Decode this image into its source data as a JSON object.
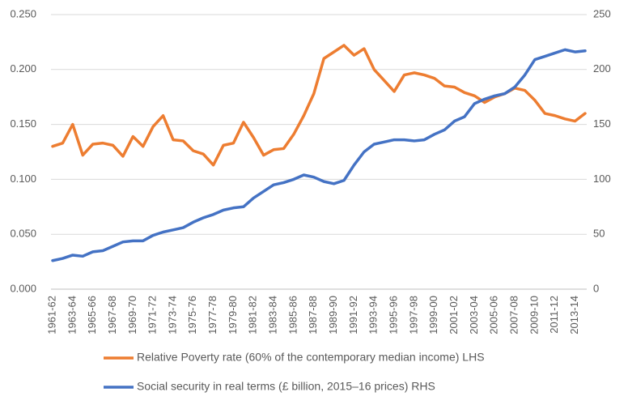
{
  "chart_data": {
    "type": "line",
    "categories": [
      "1961-62",
      null,
      "1963-64",
      null,
      "1965-66",
      null,
      "1967-68",
      null,
      "1969-70",
      null,
      "1971-72",
      null,
      "1973-74",
      null,
      "1975-76",
      null,
      "1977-78",
      null,
      "1979-80",
      null,
      "1981-82",
      null,
      "1983-84",
      null,
      "1985-86",
      null,
      "1987-88",
      null,
      "1989-90",
      null,
      "1991-92",
      null,
      "1993-94",
      null,
      "1995-96",
      null,
      "1997-98",
      null,
      "1999-00",
      null,
      "2001-02",
      null,
      "2003-04",
      null,
      "2005-06",
      null,
      "2007-08",
      null,
      "2009-10",
      null,
      "2011-12",
      null,
      "2013-14",
      null
    ],
    "series": [
      {
        "name": "Relative Poverty rate (60% of the contemporary median income) LHS",
        "color": "#ed7d31",
        "values": [
          0.13,
          0.133,
          0.15,
          0.122,
          0.132,
          0.133,
          0.131,
          0.121,
          0.139,
          0.13,
          0.148,
          0.158,
          0.136,
          0.135,
          0.126,
          0.123,
          0.113,
          0.131,
          0.133,
          0.152,
          0.138,
          0.122,
          0.127,
          0.128,
          0.141,
          0.158,
          0.178,
          0.21,
          0.216,
          0.222,
          0.213,
          0.219,
          0.2,
          0.19,
          0.18,
          0.195,
          0.197,
          0.195,
          0.192,
          0.185,
          0.184,
          0.179,
          0.176,
          0.17,
          0.175,
          0.178,
          0.183,
          0.181,
          0.172,
          0.16,
          0.158,
          0.155,
          0.153,
          0.16
        ]
      },
      {
        "name": "Social security in real terms (£ billion, 2015–16 prices) RHS",
        "color": "#4472c4",
        "axis": "y2",
        "values": [
          26,
          28,
          31,
          30,
          34,
          35,
          39,
          43,
          44,
          44,
          49,
          52,
          54,
          56,
          61,
          65,
          68,
          72,
          74,
          75,
          83,
          89,
          95,
          97,
          100,
          104,
          102,
          98,
          96,
          99,
          113,
          125,
          132,
          134,
          136,
          136,
          135,
          136,
          141,
          145,
          153,
          157,
          169,
          173,
          176,
          178,
          184,
          195,
          209,
          212,
          215,
          218,
          216,
          217
        ]
      }
    ],
    "ylim": [
      0,
      0.25
    ],
    "yticks": [
      {
        "value": 0,
        "label": "0.000"
      },
      {
        "value": 0.05,
        "label": "0.050"
      },
      {
        "value": 0.1,
        "label": "0.100"
      },
      {
        "value": 0.15,
        "label": "0.150"
      },
      {
        "value": 0.2,
        "label": "0.200"
      },
      {
        "value": 0.25,
        "label": "0.250"
      }
    ],
    "y2lim": [
      0,
      250
    ],
    "y2ticks": [
      0,
      50,
      100,
      150,
      200,
      250
    ],
    "grid": true,
    "legend": "bottom"
  }
}
